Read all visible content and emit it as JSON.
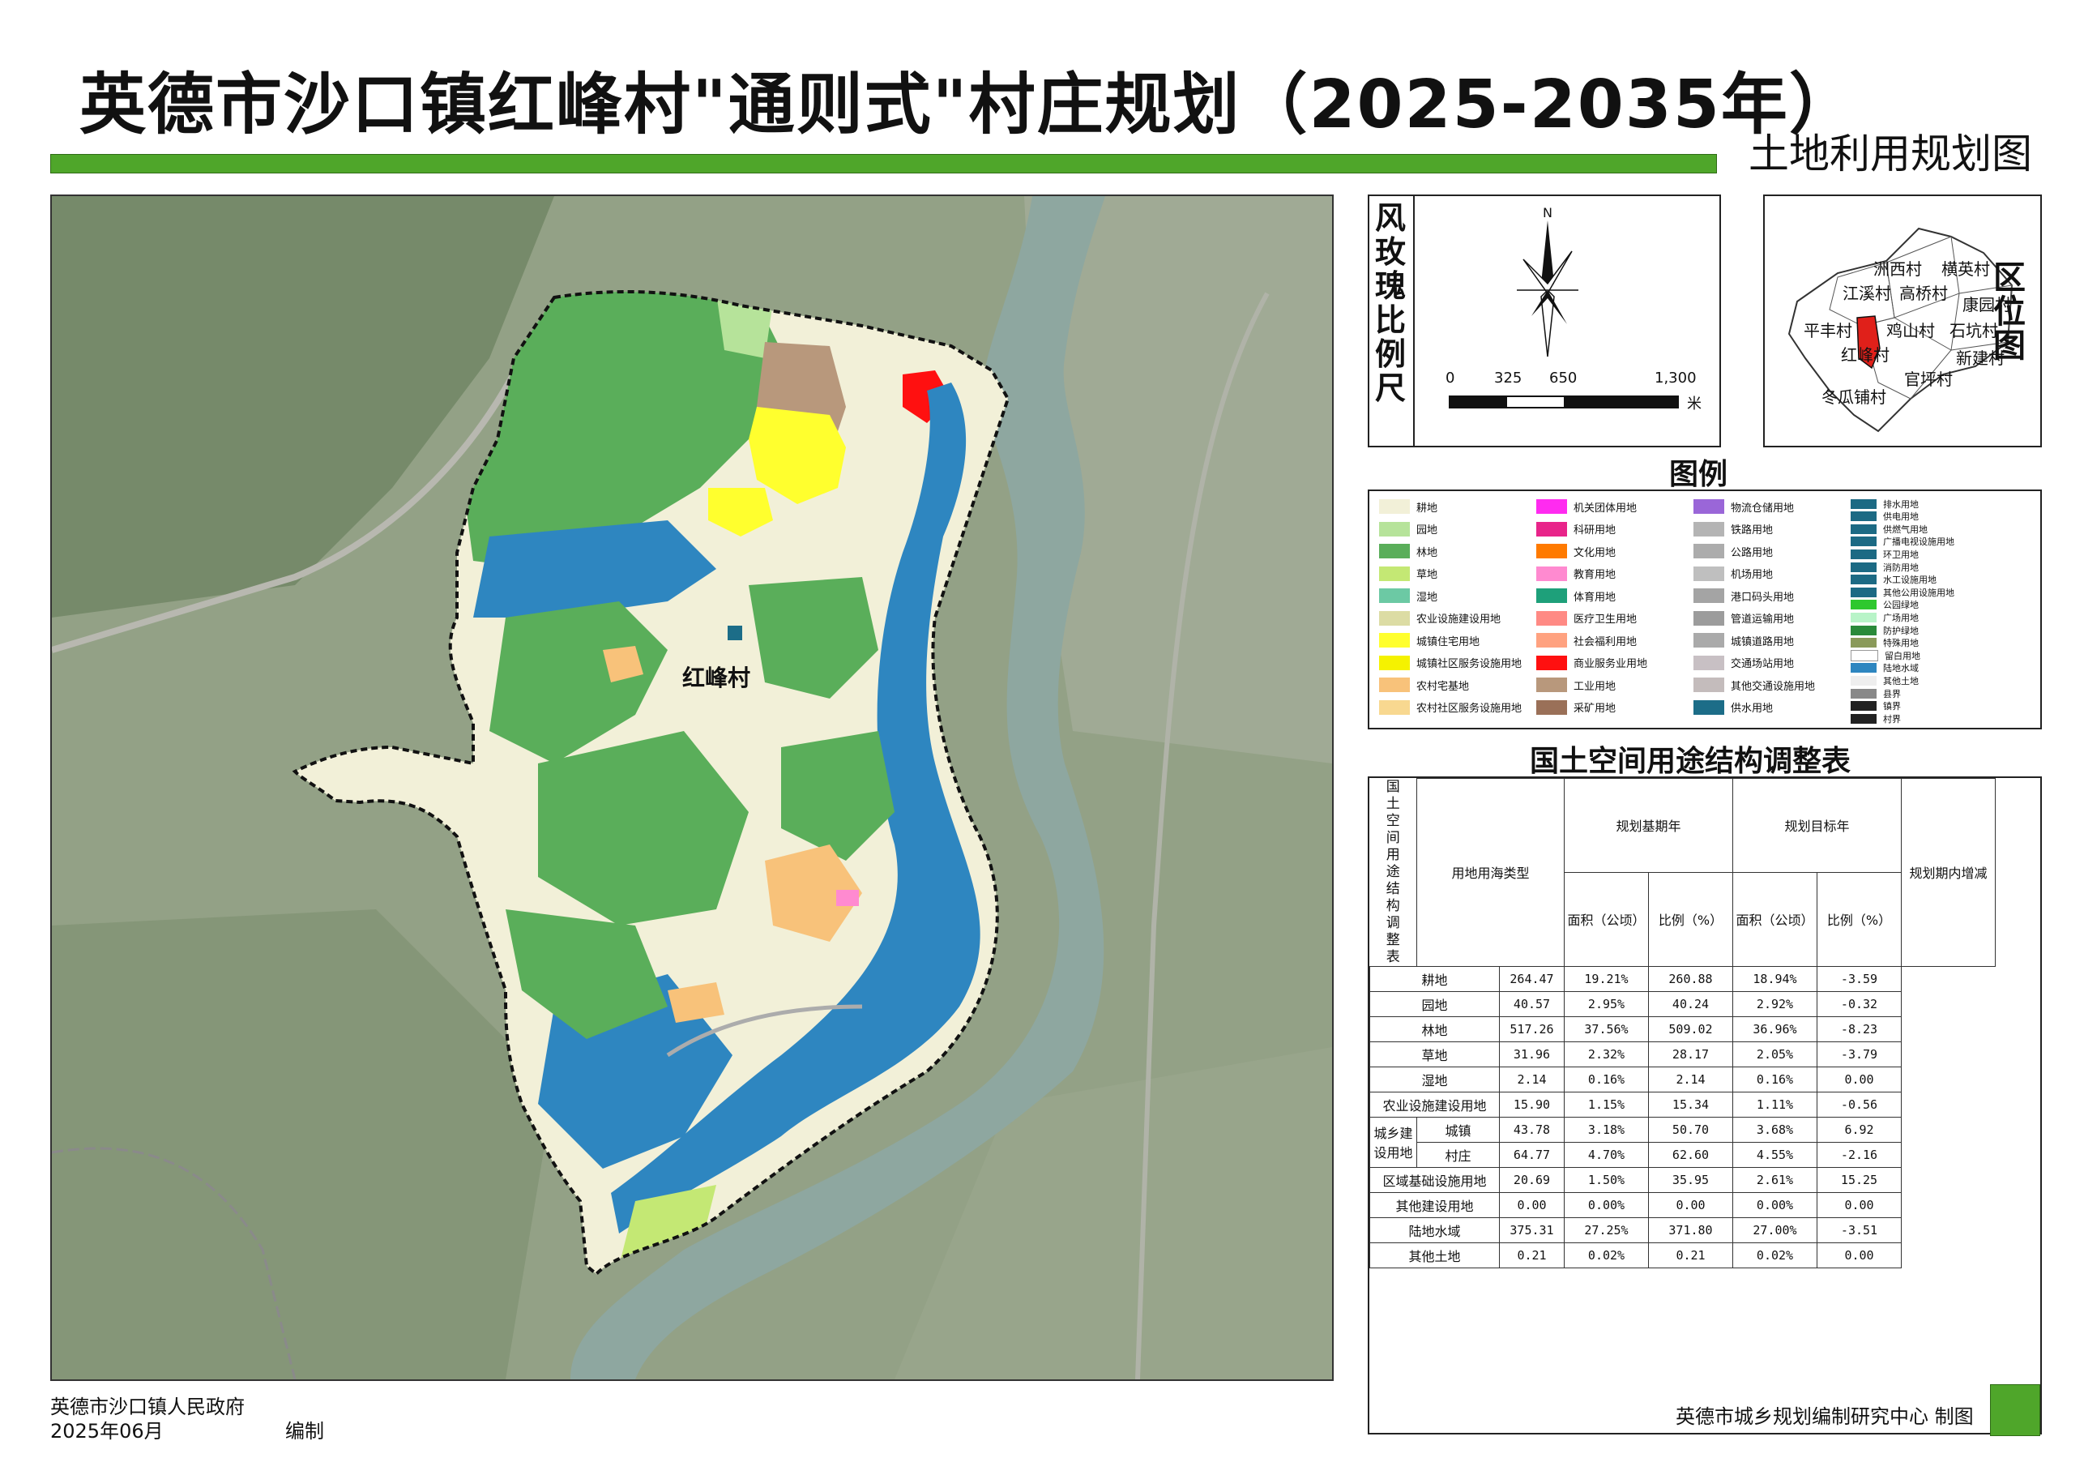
{
  "title": "英德市沙口镇红峰村\"通则式\"村庄规划（2025-2035年）",
  "subtitle": "土地利用规划图",
  "map": {
    "village_label": "红峰村"
  },
  "compass": {
    "vertical_label": [
      "风",
      "玫",
      "瑰",
      "比",
      "例",
      "尺"
    ],
    "north": "N",
    "scale_ticks": [
      "0",
      "325",
      "650",
      "1,300"
    ],
    "scale_unit": "米"
  },
  "region": {
    "vertical_label": [
      "区",
      "位",
      "图"
    ],
    "villages": [
      "洲西村",
      "横英村",
      "江溪村",
      "高桥村",
      "康园村",
      "平丰村",
      "鸡山村",
      "石坑村",
      "红峰村",
      "新建村",
      "官坪村",
      "冬瓜铺村"
    ],
    "highlight_color": "#e0201a"
  },
  "legend": {
    "title": "图例",
    "items": [
      {
        "label": "耕地",
        "color": "#f2f0d8"
      },
      {
        "label": "园地",
        "color": "#b6e39a"
      },
      {
        "label": "林地",
        "color": "#5aae5a"
      },
      {
        "label": "草地",
        "color": "#c4e874"
      },
      {
        "label": "湿地",
        "color": "#6cc9a4"
      },
      {
        "label": "农业设施建设用地",
        "color": "#dcdca4"
      },
      {
        "label": "城镇住宅用地",
        "color": "#ffff2e"
      },
      {
        "label": "城镇社区服务设施用地",
        "color": "#f5f200"
      },
      {
        "label": "农村宅基地",
        "color": "#f8c27a"
      },
      {
        "label": "农村社区服务设施用地",
        "color": "#f8d890"
      },
      {
        "label": "机关团体用地",
        "color": "#ff2bf0"
      },
      {
        "label": "科研用地",
        "color": "#e8248a"
      },
      {
        "label": "文化用地",
        "color": "#ff7a00"
      },
      {
        "label": "教育用地",
        "color": "#ff8ad0"
      },
      {
        "label": "体育用地",
        "color": "#1ea07a"
      },
      {
        "label": "医疗卫生用地",
        "color": "#ff8a84"
      },
      {
        "label": "社会福利用地",
        "color": "#ffa280"
      },
      {
        "label": "商业服务业用地",
        "color": "#ff1010"
      },
      {
        "label": "工业用地",
        "color": "#b8987c"
      },
      {
        "label": "采矿用地",
        "color": "#9a7058"
      },
      {
        "label": "物流仓储用地",
        "color": "#9a66d8"
      },
      {
        "label": "铁路用地",
        "color": "#b4b4b4"
      },
      {
        "label": "公路用地",
        "color": "#acacac"
      },
      {
        "label": "机场用地",
        "color": "#bfbfbf"
      },
      {
        "label": "港口码头用地",
        "color": "#a4a4a4"
      },
      {
        "label": "管道运输用地",
        "color": "#9c9c9c"
      },
      {
        "label": "城镇道路用地",
        "color": "#aaaaaa"
      },
      {
        "label": "交通场站用地",
        "color": "#c8c0c4"
      },
      {
        "label": "其他交通设施用地",
        "color": "#c4bcbc"
      },
      {
        "label": "供水用地",
        "color": "#1c6d88"
      },
      {
        "label": "排水用地",
        "color": "#1c6a84"
      },
      {
        "label": "供电用地",
        "color": "#1c6a84"
      },
      {
        "label": "供燃气用地",
        "color": "#1c6a84"
      },
      {
        "label": "广播电视设施用地",
        "color": "#1c6a84"
      },
      {
        "label": "环卫用地",
        "color": "#1c6a84"
      },
      {
        "label": "消防用地",
        "color": "#1c6a84"
      },
      {
        "label": "水工设施用地",
        "color": "#1c6a84"
      },
      {
        "label": "其他公用设施用地",
        "color": "#1c6a84"
      },
      {
        "label": "公园绿地",
        "color": "#2ec82e"
      },
      {
        "label": "广场用地",
        "color": "#b8f4c8"
      },
      {
        "label": "防护绿地",
        "color": "#2a8a3a"
      },
      {
        "label": "特殊用地",
        "color": "#8a9a5a"
      },
      {
        "label": "留白用地",
        "color": "#ffffff"
      },
      {
        "label": "陆地水域",
        "color": "#2e86c0"
      },
      {
        "label": "其他土地",
        "color": "#eeeeee"
      },
      {
        "label": "县界",
        "color": "#888888"
      },
      {
        "label": "镇界",
        "color": "#222222"
      },
      {
        "label": "村界",
        "color": "#222222"
      }
    ]
  },
  "table": {
    "title": "国土空间用途结构调整表",
    "side_label": [
      "国",
      "土",
      "空",
      "间",
      "用",
      "途",
      "结",
      "构",
      "调",
      "整",
      "表"
    ],
    "headers": {
      "type": "用地用海类型",
      "base_year": "规划基期年",
      "target_year": "规划目标年",
      "change": "规划期内增减",
      "area": "面积（公顷）",
      "ratio": "比例（%）"
    },
    "group_label": "城乡建设用地",
    "rows": [
      {
        "name": "耕地",
        "base_area": "264.47",
        "base_ratio": "19.21%",
        "target_area": "260.88",
        "target_ratio": "18.94%",
        "change": "-3.59"
      },
      {
        "name": "园地",
        "base_area": "40.57",
        "base_ratio": "2.95%",
        "target_area": "40.24",
        "target_ratio": "2.92%",
        "change": "-0.32"
      },
      {
        "name": "林地",
        "base_area": "517.26",
        "base_ratio": "37.56%",
        "target_area": "509.02",
        "target_ratio": "36.96%",
        "change": "-8.23"
      },
      {
        "name": "草地",
        "base_area": "31.96",
        "base_ratio": "2.32%",
        "target_area": "28.17",
        "target_ratio": "2.05%",
        "change": "-3.79"
      },
      {
        "name": "湿地",
        "base_area": "2.14",
        "base_ratio": "0.16%",
        "target_area": "2.14",
        "target_ratio": "0.16%",
        "change": "0.00"
      },
      {
        "name": "农业设施建设用地",
        "base_area": "15.90",
        "base_ratio": "1.15%",
        "target_area": "15.34",
        "target_ratio": "1.11%",
        "change": "-0.56"
      },
      {
        "name": "城镇",
        "base_area": "43.78",
        "base_ratio": "3.18%",
        "target_area": "50.70",
        "target_ratio": "3.68%",
        "change": "6.92"
      },
      {
        "name": "村庄",
        "base_area": "64.77",
        "base_ratio": "4.70%",
        "target_area": "62.60",
        "target_ratio": "4.55%",
        "change": "-2.16"
      },
      {
        "name": "区域基础设施用地",
        "base_area": "20.69",
        "base_ratio": "1.50%",
        "target_area": "35.95",
        "target_ratio": "2.61%",
        "change": "15.25"
      },
      {
        "name": "其他建设用地",
        "base_area": "0.00",
        "base_ratio": "0.00%",
        "target_area": "0.00",
        "target_ratio": "0.00%",
        "change": "0.00"
      },
      {
        "name": "陆地水域",
        "base_area": "375.31",
        "base_ratio": "27.25%",
        "target_area": "371.80",
        "target_ratio": "27.00%",
        "change": "-3.51"
      },
      {
        "name": "其他土地",
        "base_area": "0.21",
        "base_ratio": "0.02%",
        "target_area": "0.21",
        "target_ratio": "0.02%",
        "change": "0.00"
      }
    ]
  },
  "footer": {
    "org": "英德市沙口镇人民政府",
    "date": "2025年06月",
    "edit": "编制",
    "maker": "英德市城乡规划编制研究中心 制图"
  }
}
